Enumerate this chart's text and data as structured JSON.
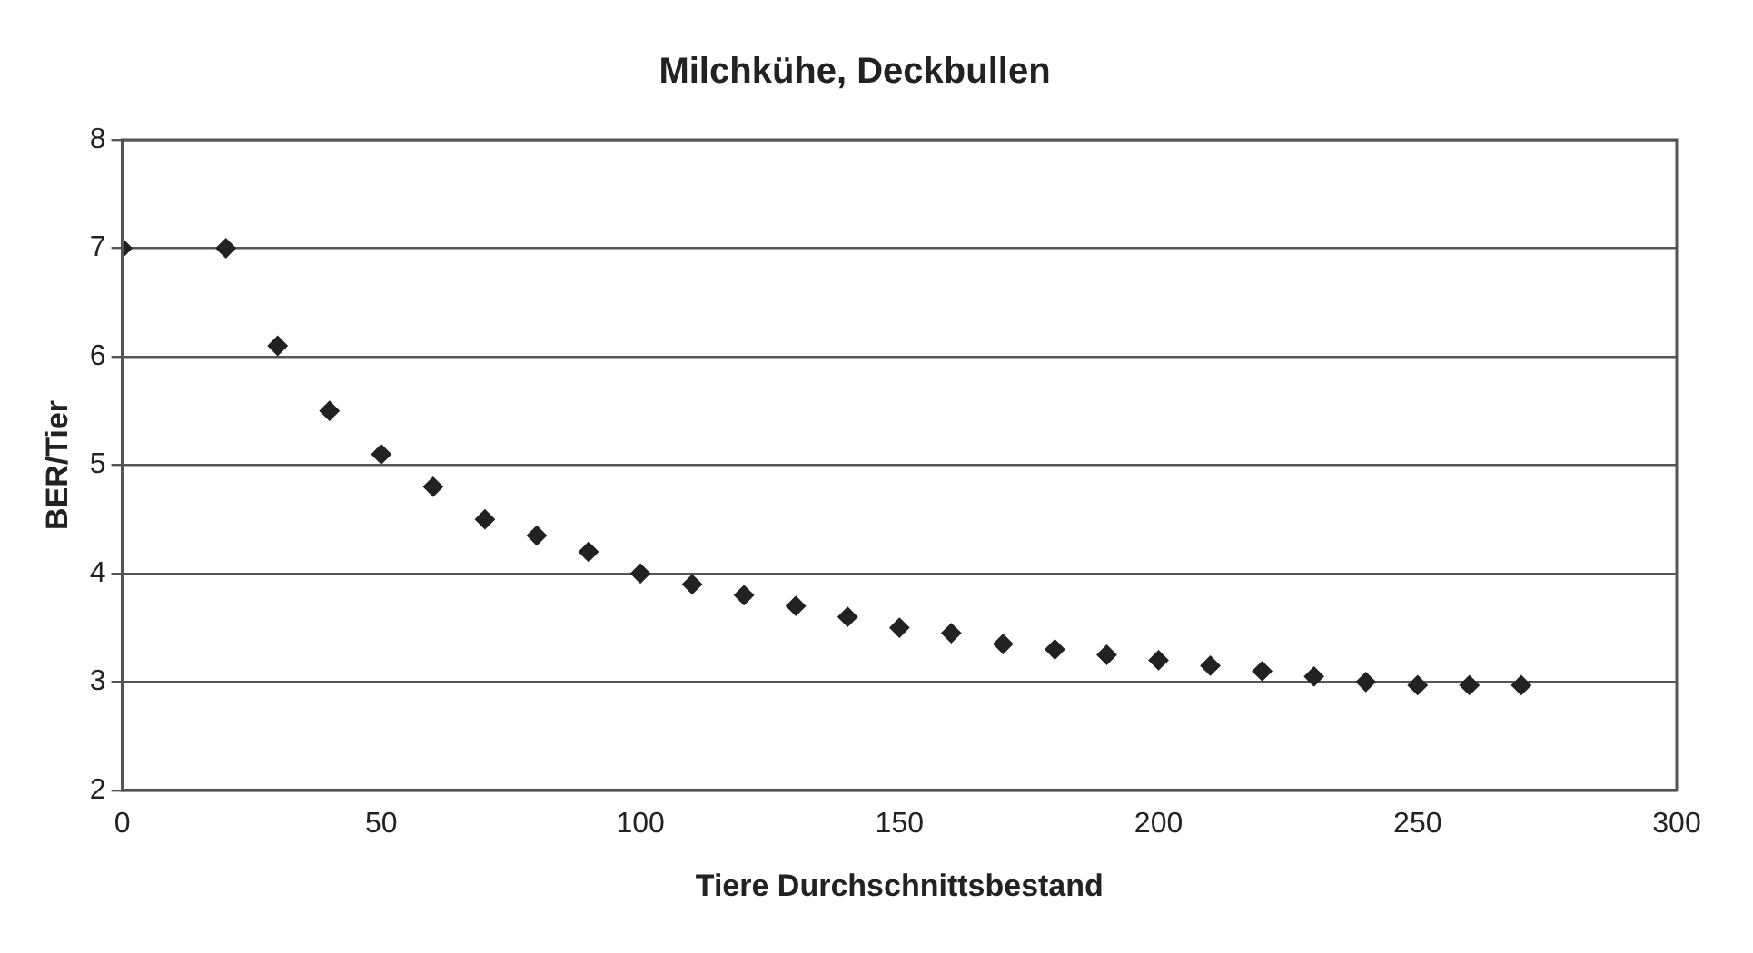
{
  "chart_data": {
    "type": "scatter",
    "title": "Milchkühe, Deckbullen",
    "xlabel": "Tiere Durchschnittsbestand",
    "ylabel": "BER/Tier",
    "x": [
      0,
      20,
      30,
      40,
      50,
      60,
      70,
      80,
      90,
      100,
      110,
      120,
      130,
      140,
      150,
      160,
      170,
      180,
      190,
      200,
      210,
      220,
      230,
      240,
      250,
      260,
      270
    ],
    "series": [
      {
        "color": "#222222",
        "values": [
          7,
          7,
          6.1,
          5.5,
          5.1,
          4.8,
          4.5,
          4.35,
          4.2,
          4.0,
          3.9,
          3.8,
          3.7,
          3.6,
          3.5,
          3.45,
          3.35,
          3.3,
          3.25,
          3.2,
          3.15,
          3.1,
          3.05,
          3.0,
          2.97,
          2.97,
          2.97
        ]
      }
    ],
    "xlim": [
      0,
      300
    ],
    "xticks": [
      0,
      50,
      100,
      150,
      200,
      250,
      300
    ],
    "ylim": [
      2,
      8
    ],
    "yticks": [
      2,
      3,
      4,
      5,
      6,
      7,
      8
    ],
    "grid": "y",
    "legend": false,
    "marker": "diamond"
  }
}
